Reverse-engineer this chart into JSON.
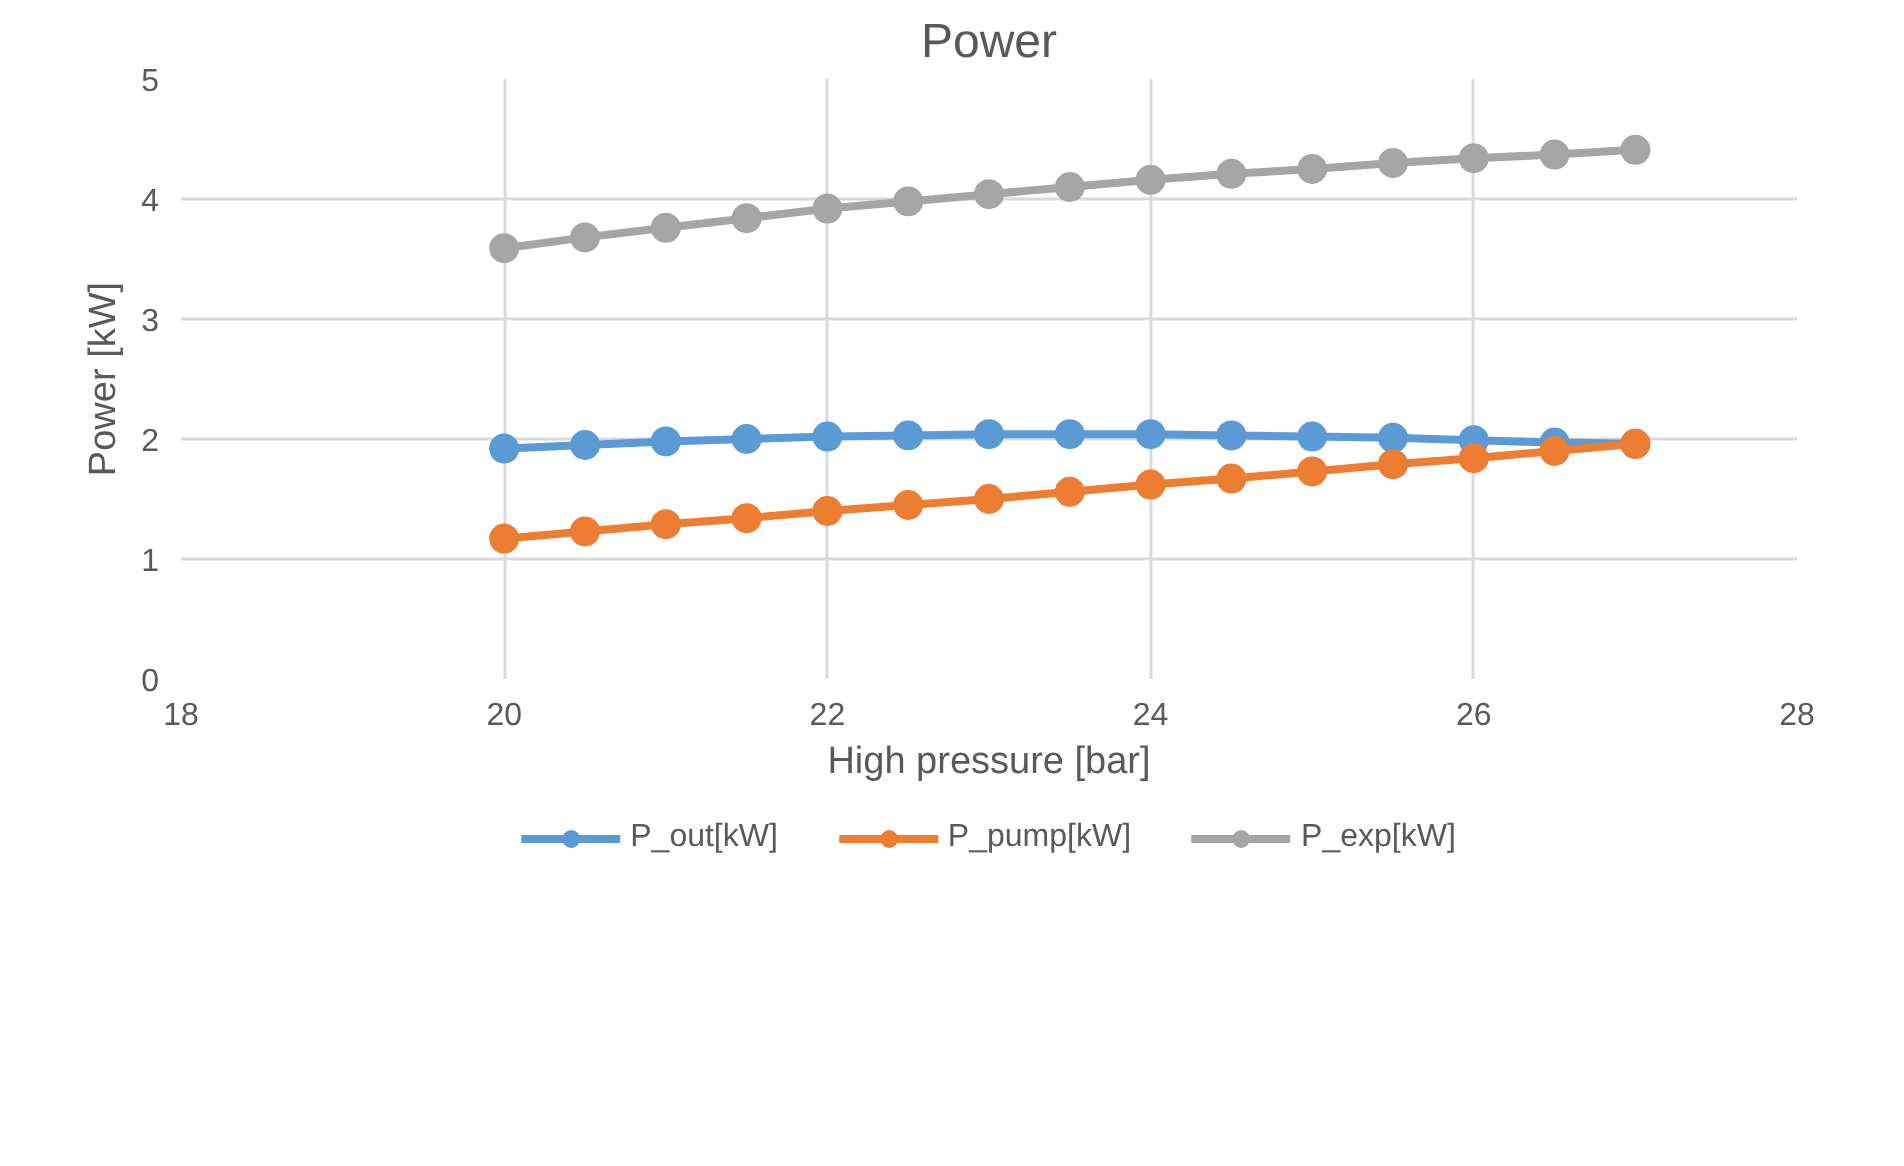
{
  "chart_data": {
    "type": "line",
    "title": "Power",
    "xlabel": "High pressure [bar]",
    "ylabel": "Power [kW]",
    "x": [
      20,
      20.5,
      21,
      21.5,
      22,
      22.5,
      23,
      23.5,
      24,
      24.5,
      25,
      25.5,
      26,
      26.5,
      27
    ],
    "series": [
      {
        "name": "P_out[kW]",
        "color": "#5b9bd5",
        "values": [
          1.92,
          1.95,
          1.98,
          2.0,
          2.02,
          2.03,
          2.04,
          2.04,
          2.04,
          2.03,
          2.02,
          2.01,
          1.99,
          1.97,
          1.96
        ]
      },
      {
        "name": "P_pump[kW]",
        "color": "#ed7d31",
        "values": [
          1.17,
          1.23,
          1.29,
          1.34,
          1.4,
          1.45,
          1.5,
          1.56,
          1.62,
          1.67,
          1.73,
          1.79,
          1.84,
          1.9,
          1.96
        ]
      },
      {
        "name": "P_exp[kW]",
        "color": "#a5a5a5",
        "values": [
          3.59,
          3.68,
          3.76,
          3.84,
          3.92,
          3.98,
          4.04,
          4.1,
          4.16,
          4.21,
          4.25,
          4.3,
          4.34,
          4.37,
          4.41
        ]
      }
    ],
    "xlim": [
      18,
      28
    ],
    "xticks": [
      18,
      20,
      22,
      24,
      26,
      28
    ],
    "ylim": [
      0,
      5
    ],
    "yticks": [
      0,
      1,
      2,
      3,
      4,
      5
    ],
    "grid": true,
    "legend": "bottom",
    "marker": "circle",
    "line_style": "solid"
  }
}
